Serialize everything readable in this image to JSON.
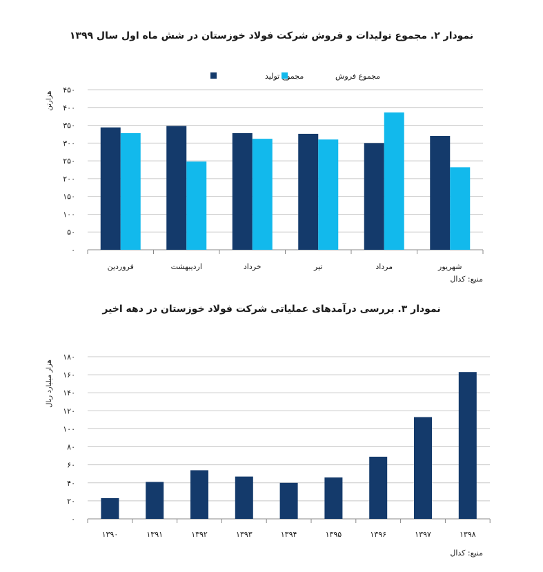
{
  "chart_data": [
    {
      "type": "bar",
      "title": "نمودار ۲. مجموع تولیدات و فروش شرکت فولاد خوزستان در شش ماه اول سال ۱۳۹۹",
      "ylabel": "هزارتن",
      "source": "منبع: کدال",
      "ylim": [
        0,
        450
      ],
      "yticks": [
        "۰",
        "۵۰",
        "۱۰۰",
        "۱۵۰",
        "۲۰۰",
        "۲۵۰",
        "۳۰۰",
        "۳۵۰",
        "۴۰۰",
        "۴۵۰"
      ],
      "categories": [
        "فروردین",
        "اردیبهشت",
        "خرداد",
        "تیر",
        "مرداد",
        "شهریور"
      ],
      "series": [
        {
          "name": "مجموع تولید",
          "color": "#143a6b",
          "values": [
            344,
            348,
            328,
            326,
            300,
            320
          ]
        },
        {
          "name": "مجموع فروش",
          "color": "#12b9ec",
          "values": [
            328,
            248,
            312,
            310,
            386,
            232
          ]
        }
      ],
      "legend_position": "top",
      "grid": true
    },
    {
      "type": "bar",
      "title": "نمودار ۳. بررسی درآمدهای عملیاتی شرکت فولاد خوزستان در دهه اخیر",
      "ylabel": "هزار میلیارد ریال",
      "source": "منبع: کدال",
      "ylim": [
        0,
        180
      ],
      "yticks": [
        "۰",
        "۲۰",
        "۴۰",
        "۶۰",
        "۸۰",
        "۱۰۰",
        "۱۲۰",
        "۱۴۰",
        "۱۶۰",
        "۱۸۰"
      ],
      "categories": [
        "۱۳۹۰",
        "۱۳۹۱",
        "۱۳۹۲",
        "۱۳۹۳",
        "۱۳۹۴",
        "۱۳۹۵",
        "۱۳۹۶",
        "۱۳۹۷",
        "۱۳۹۸"
      ],
      "series": [
        {
          "color": "#143a6b",
          "values": [
            23,
            41,
            54,
            47,
            40,
            46,
            69,
            113,
            163
          ]
        }
      ],
      "grid": true
    }
  ]
}
